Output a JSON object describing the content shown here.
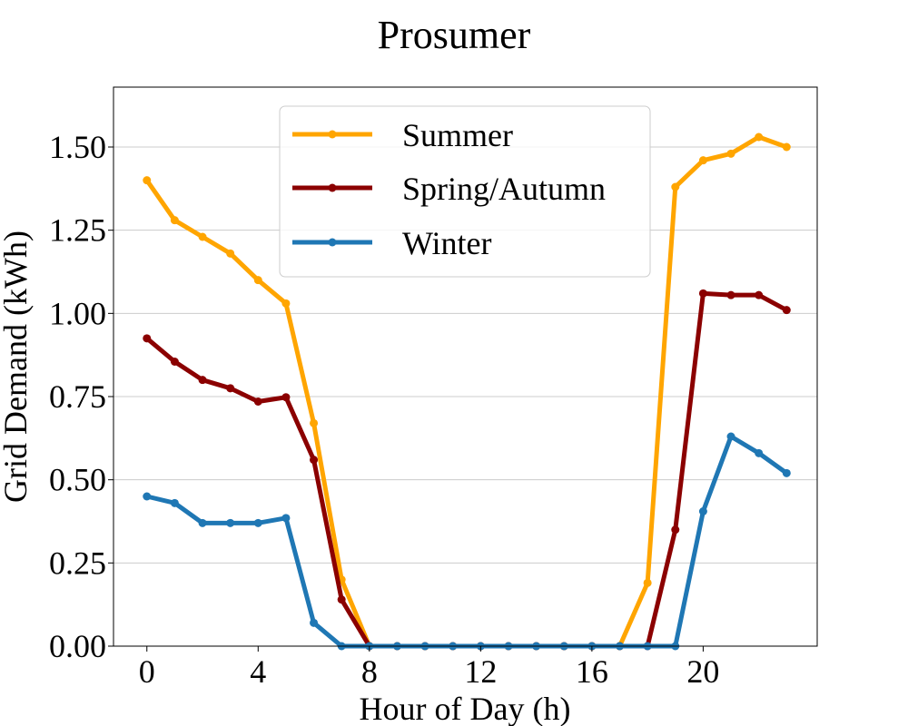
{
  "chart_data": {
    "type": "line",
    "title": "Prosumer",
    "xlabel": "Hour of Day (h)",
    "ylabel": "Grid Demand (kWh)",
    "xlim": [
      -1.2,
      24.1
    ],
    "ylim": [
      0,
      1.68
    ],
    "xticks": [
      0,
      4,
      8,
      12,
      16,
      20
    ],
    "xtick_labels": [
      "0",
      "4",
      "8",
      "12",
      "16",
      "20"
    ],
    "yticks": [
      0,
      0.25,
      0.5,
      0.75,
      1.0,
      1.25,
      1.5
    ],
    "ytick_labels": [
      "0.00",
      "0.25",
      "0.50",
      "0.75",
      "1.00",
      "1.25",
      "1.50"
    ],
    "grid": "horizontal",
    "legend_position": "upper-center",
    "x": [
      0,
      1,
      2,
      3,
      4,
      5,
      6,
      7,
      8,
      9,
      10,
      11,
      12,
      13,
      14,
      15,
      16,
      17,
      18,
      19,
      20,
      21,
      22,
      23
    ],
    "series": [
      {
        "name": "Summer",
        "color": "#FFA500",
        "values": [
          1.4,
          1.28,
          1.23,
          1.18,
          1.1,
          1.03,
          0.67,
          0.2,
          0,
          0,
          0,
          0,
          0,
          0,
          0,
          0,
          0,
          0,
          0.19,
          1.38,
          1.46,
          1.48,
          1.53,
          1.5
        ]
      },
      {
        "name": "Spring/Autumn",
        "color": "#8B0000",
        "values": [
          0.925,
          0.855,
          0.8,
          0.775,
          0.735,
          0.748,
          0.56,
          0.14,
          0,
          0,
          0,
          0,
          0,
          0,
          0,
          0,
          0,
          0,
          0,
          0.35,
          1.06,
          1.055,
          1.055,
          1.01
        ]
      },
      {
        "name": "Winter",
        "color": "#1F77B4",
        "values": [
          0.45,
          0.43,
          0.37,
          0.37,
          0.37,
          0.385,
          0.07,
          0,
          0,
          0,
          0,
          0,
          0,
          0,
          0,
          0,
          0,
          0,
          0,
          0,
          0.405,
          0.63,
          0.58,
          0.52
        ]
      }
    ]
  }
}
